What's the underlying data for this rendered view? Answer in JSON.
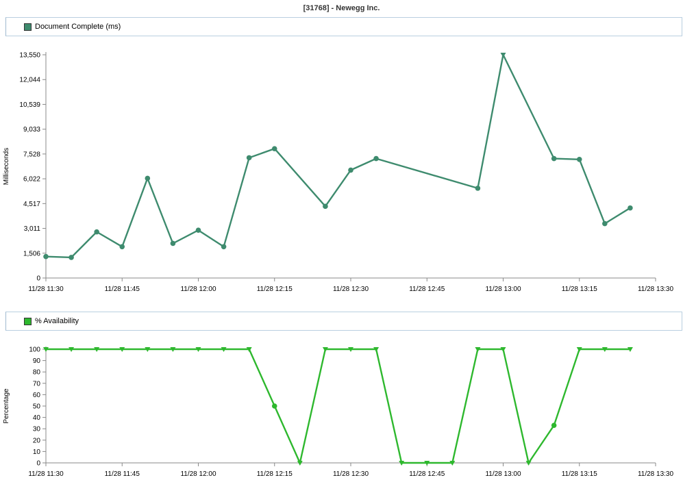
{
  "title": "[31768] - Newegg Inc.",
  "colors": {
    "series1": "#3e8b6e",
    "series2": "#2eb82e"
  },
  "chart_data": [
    {
      "type": "line",
      "legend": "Document Complete (ms)",
      "ylabel": "Milliseconds",
      "ylim": [
        0,
        13550
      ],
      "yticks": [
        0,
        1506,
        3011,
        4517,
        6022,
        7528,
        9033,
        10539,
        12044,
        13550
      ],
      "ytick_labels": [
        "0",
        "1,506",
        "3,011",
        "4,517",
        "6,022",
        "7,528",
        "9,033",
        "10,539",
        "12,044",
        "13,550"
      ],
      "xlim": [
        "11/28 11:30",
        "11/28 13:30"
      ],
      "xtick_labels": [
        "11/28 11:30",
        "11/28 11:45",
        "11/28 12:00",
        "11/28 12:15",
        "11/28 12:30",
        "11/28 12:45",
        "11/28 13:00",
        "11/28 13:15",
        "11/28 13:30"
      ],
      "x": [
        "11/28 11:30",
        "11/28 11:35",
        "11/28 11:40",
        "11/28 11:45",
        "11/28 11:50",
        "11/28 11:55",
        "11/28 12:00",
        "11/28 12:05",
        "11/28 12:10",
        "11/28 12:15",
        "11/28 12:25",
        "11/28 12:30",
        "11/28 12:35",
        "11/28 12:55",
        "11/28 13:00",
        "11/28 13:10",
        "11/28 13:15",
        "11/28 13:20",
        "11/28 13:25"
      ],
      "series": [
        {
          "values": [
            1300,
            1250,
            2800,
            1900,
            6050,
            2100,
            2900,
            1900,
            7300,
            7850,
            4350,
            6550,
            7250,
            5450,
            13550,
            7250,
            7200,
            3300,
            4250
          ]
        }
      ]
    },
    {
      "type": "line",
      "legend": "% Availability",
      "ylabel": "Percentage",
      "ylim": [
        0,
        100
      ],
      "yticks": [
        0,
        10,
        20,
        30,
        40,
        50,
        60,
        70,
        80,
        90,
        100
      ],
      "ytick_labels": [
        "0",
        "10",
        "20",
        "30",
        "40",
        "50",
        "60",
        "70",
        "80",
        "90",
        "100"
      ],
      "xlim": [
        "11/28 11:30",
        "11/28 13:30"
      ],
      "xtick_labels": [
        "11/28 11:30",
        "11/28 11:45",
        "11/28 12:00",
        "11/28 12:15",
        "11/28 12:30",
        "11/28 12:45",
        "11/28 13:00",
        "11/28 13:15",
        "11/28 13:30"
      ],
      "x": [
        "11/28 11:30",
        "11/28 11:35",
        "11/28 11:40",
        "11/28 11:45",
        "11/28 11:50",
        "11/28 11:55",
        "11/28 12:00",
        "11/28 12:05",
        "11/28 12:10",
        "11/28 12:15",
        "11/28 12:20",
        "11/28 12:25",
        "11/28 12:30",
        "11/28 12:35",
        "11/28 12:40",
        "11/28 12:45",
        "11/28 12:50",
        "11/28 12:55",
        "11/28 13:00",
        "11/28 13:05",
        "11/28 13:10",
        "11/28 13:15",
        "11/28 13:20",
        "11/28 13:25"
      ],
      "series": [
        {
          "values": [
            100,
            100,
            100,
            100,
            100,
            100,
            100,
            100,
            100,
            50,
            0,
            100,
            100,
            100,
            0,
            0,
            0,
            100,
            100,
            0,
            33,
            100,
            100,
            100
          ]
        }
      ]
    }
  ]
}
